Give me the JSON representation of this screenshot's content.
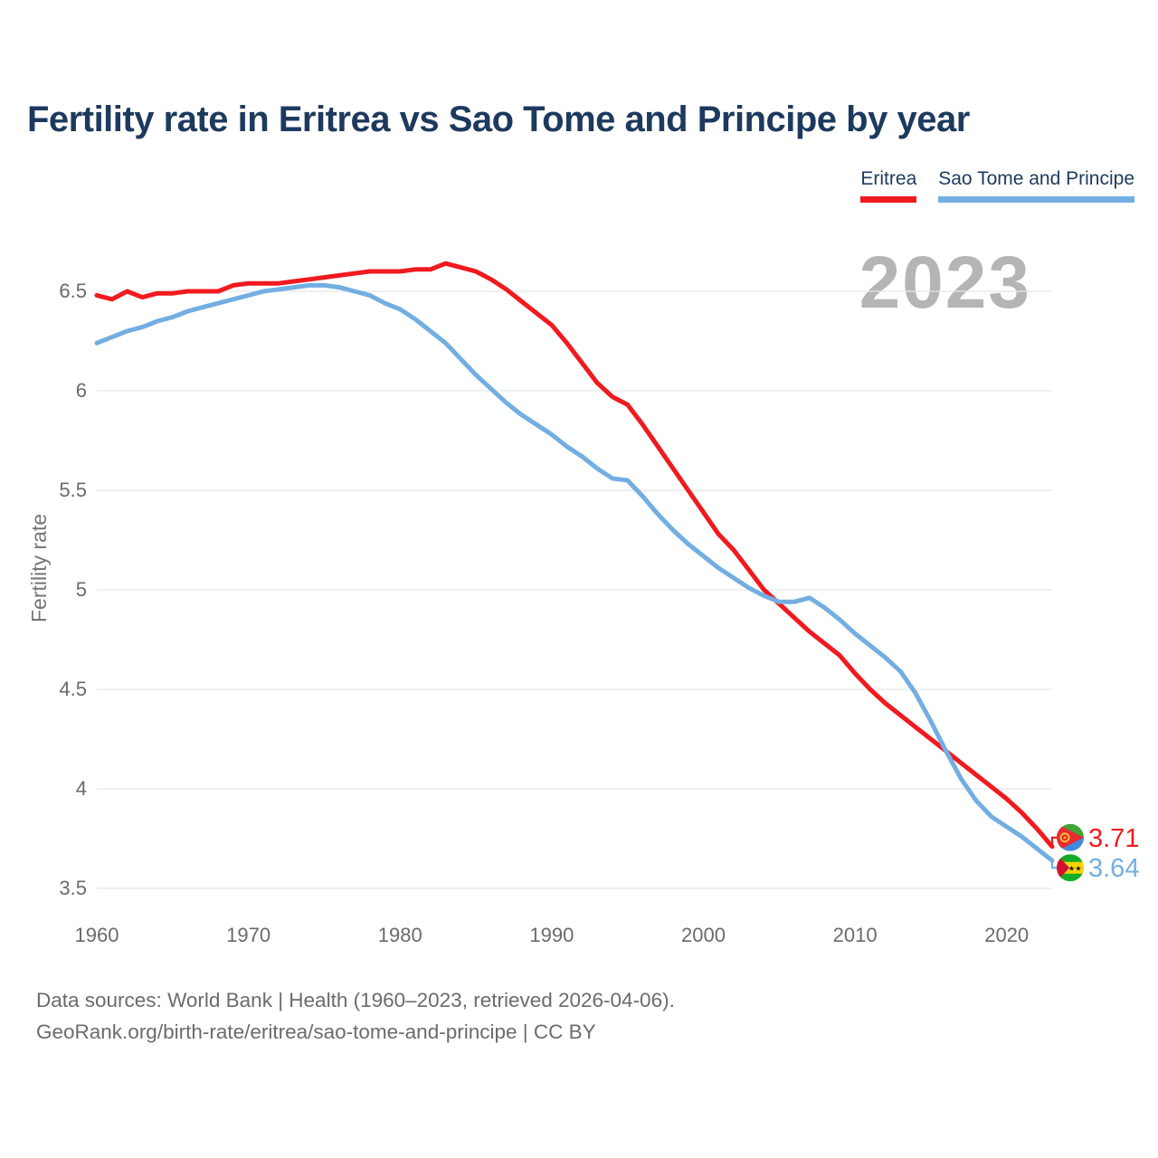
{
  "chart_data": {
    "type": "line",
    "title": "Fertility rate in Eritrea vs Sao Tome and Principe by year",
    "xlabel": "",
    "ylabel": "Fertility rate",
    "x_ticks": [
      1960,
      1970,
      1980,
      1990,
      2000,
      2010,
      2020
    ],
    "y_ticks": [
      3.5,
      4,
      4.5,
      5,
      5.5,
      6,
      6.5
    ],
    "xlim": [
      1960,
      2023
    ],
    "ylim": [
      3.5,
      6.75
    ],
    "grid": "horizontal",
    "legend_position": "top-right",
    "watermark": "2023",
    "x": [
      1960,
      1961,
      1962,
      1963,
      1964,
      1965,
      1966,
      1967,
      1968,
      1969,
      1970,
      1971,
      1972,
      1973,
      1974,
      1975,
      1976,
      1977,
      1978,
      1979,
      1980,
      1981,
      1982,
      1983,
      1984,
      1985,
      1986,
      1987,
      1988,
      1989,
      1990,
      1991,
      1992,
      1993,
      1994,
      1995,
      1996,
      1997,
      1998,
      1999,
      2000,
      2001,
      2002,
      2003,
      2004,
      2005,
      2006,
      2007,
      2008,
      2009,
      2010,
      2011,
      2012,
      2013,
      2014,
      2015,
      2016,
      2017,
      2018,
      2019,
      2020,
      2021,
      2022,
      2023
    ],
    "series": [
      {
        "name": "Eritrea",
        "color": "#f01a1f",
        "end_label": "3.71",
        "flag_icon": "eritrea-flag-icon",
        "values": [
          6.48,
          6.46,
          6.5,
          6.47,
          6.49,
          6.49,
          6.5,
          6.5,
          6.5,
          6.53,
          6.54,
          6.54,
          6.54,
          6.55,
          6.56,
          6.57,
          6.58,
          6.59,
          6.6,
          6.6,
          6.6,
          6.61,
          6.61,
          6.64,
          6.62,
          6.6,
          6.56,
          6.51,
          6.45,
          6.39,
          6.33,
          6.24,
          6.14,
          6.04,
          5.97,
          5.93,
          5.83,
          5.72,
          5.61,
          5.5,
          5.39,
          5.28,
          5.2,
          5.1,
          5.0,
          4.93,
          4.86,
          4.79,
          4.73,
          4.67,
          4.58,
          4.5,
          4.43,
          4.37,
          4.31,
          4.25,
          4.19,
          4.13,
          4.07,
          4.01,
          3.95,
          3.88,
          3.8,
          3.71
        ]
      },
      {
        "name": "Sao Tome and Principe",
        "color": "#73aee2",
        "end_label": "3.64",
        "flag_icon": "sao-tome-and-principe-flag-icon",
        "values": [
          6.24,
          6.27,
          6.3,
          6.32,
          6.35,
          6.37,
          6.4,
          6.42,
          6.44,
          6.46,
          6.48,
          6.5,
          6.51,
          6.52,
          6.53,
          6.53,
          6.52,
          6.5,
          6.48,
          6.44,
          6.41,
          6.36,
          6.3,
          6.24,
          6.16,
          6.08,
          6.01,
          5.94,
          5.88,
          5.83,
          5.78,
          5.72,
          5.67,
          5.61,
          5.56,
          5.55,
          5.47,
          5.38,
          5.3,
          5.23,
          5.17,
          5.11,
          5.06,
          5.01,
          4.97,
          4.94,
          4.94,
          4.96,
          4.91,
          4.85,
          4.78,
          4.72,
          4.66,
          4.59,
          4.48,
          4.34,
          4.19,
          4.05,
          3.94,
          3.86,
          3.81,
          3.76,
          3.7,
          3.64
        ]
      }
    ]
  },
  "footer": {
    "line1": "Data sources: World Bank | Health (1960–2023, retrieved 2026-04-06).",
    "line2": "GeoRank.org/birth-rate/eritrea/sao-tome-and-principe | CC BY"
  }
}
